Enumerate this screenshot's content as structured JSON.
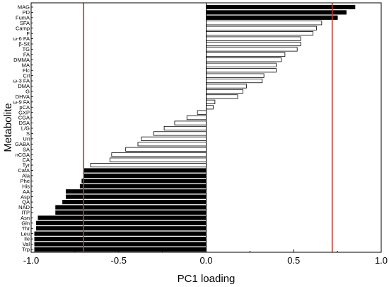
{
  "chart_data": {
    "type": "bar",
    "orientation": "horizontal",
    "xlabel": "PC1 loading",
    "ylabel": "Metabolite",
    "xlim": [
      -1.0,
      1.0
    ],
    "xticks": [
      -1.0,
      -0.5,
      0.0,
      0.5,
      1.0
    ],
    "xtick_labels": [
      "-1.0",
      "-0.5",
      "0.0",
      "0.5",
      "1.0"
    ],
    "threshold_lines": [
      -0.7,
      0.72
    ],
    "threshold_color": "#c0392b",
    "grid": false,
    "categories": [
      "MAG",
      "PD",
      "FumA",
      "SFA",
      "Camp",
      "F",
      "ω-6 FA",
      "β-Sit",
      "TG",
      "FA",
      "DMMA",
      "MA",
      "Flc",
      "Crl",
      "ω-3 FA",
      "DMA",
      "G",
      "DHVA",
      "ω-9 FA",
      "pCA",
      "GXP",
      "CGA",
      "DSA",
      "L/G",
      "S",
      "Uri",
      "GABA",
      "SA",
      "nCGA",
      "CA",
      "Tyr",
      "CafA",
      "Ala",
      "Phe",
      "His",
      "AA",
      "Asp",
      "QA",
      "NAD",
      "ITP",
      "Asn",
      "Gln",
      "Thr",
      "Leu",
      "Ile",
      "Val",
      "Trp"
    ],
    "values": [
      0.85,
      0.8,
      0.75,
      0.66,
      0.63,
      0.61,
      0.54,
      0.54,
      0.52,
      0.45,
      0.43,
      0.4,
      0.4,
      0.33,
      0.32,
      0.23,
      0.21,
      0.18,
      0.05,
      0.04,
      -0.05,
      -0.11,
      -0.18,
      -0.24,
      -0.3,
      -0.37,
      -0.39,
      -0.46,
      -0.54,
      -0.55,
      -0.66,
      -0.7,
      -0.7,
      -0.71,
      -0.72,
      -0.8,
      -0.8,
      -0.82,
      -0.86,
      -0.86,
      -0.96,
      -0.97,
      -0.97,
      -0.98,
      -0.98,
      -0.98,
      -0.98
    ],
    "filled": [
      true,
      true,
      true,
      false,
      false,
      false,
      false,
      false,
      false,
      false,
      false,
      false,
      false,
      false,
      false,
      false,
      false,
      false,
      false,
      false,
      false,
      false,
      false,
      false,
      false,
      false,
      false,
      false,
      false,
      false,
      false,
      true,
      true,
      true,
      true,
      true,
      true,
      true,
      true,
      true,
      true,
      true,
      true,
      true,
      true,
      true,
      true
    ],
    "bar_color": "#000000"
  }
}
